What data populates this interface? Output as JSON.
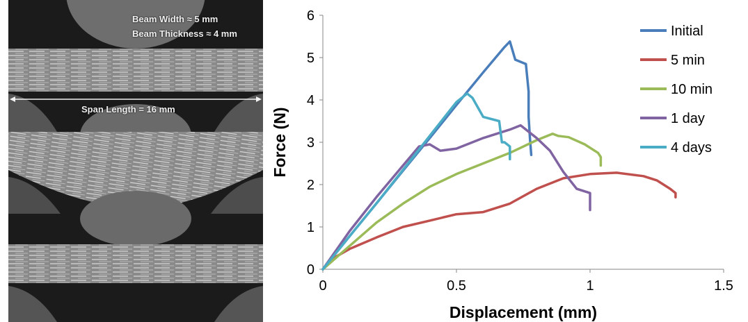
{
  "photo": {
    "captions": {
      "beam_width": "Beam Width ≈ 5 mm",
      "beam_thickness": "Beam Thickness ≈ 4 mm",
      "span_length": "Span Length = 16 mm"
    }
  },
  "chart_data": {
    "type": "line",
    "title": "",
    "xlabel": "Displacement (mm)",
    "ylabel": "Force (N)",
    "xlim": [
      0,
      1.5
    ],
    "ylim": [
      0,
      6
    ],
    "xticks": [
      0,
      0.5,
      1,
      1.5
    ],
    "xtick_labels": [
      "0",
      "0.5",
      "1",
      "1.5"
    ],
    "yticks": [
      0,
      1,
      2,
      3,
      4,
      5,
      6
    ],
    "ytick_labels": [
      "0",
      "1",
      "2",
      "3",
      "4",
      "5",
      "6"
    ],
    "grid": false,
    "legend_position": "top-right",
    "series": [
      {
        "name": "Initial",
        "color": "#4a7ebb",
        "x": [
          0,
          0.1,
          0.2,
          0.3,
          0.4,
          0.5,
          0.6,
          0.68,
          0.7,
          0.72,
          0.76,
          0.77,
          0.77,
          0.775,
          0.78
        ],
        "y": [
          0,
          0.78,
          1.55,
          2.33,
          3.1,
          3.88,
          4.65,
          5.25,
          5.38,
          4.95,
          4.85,
          4.2,
          3.6,
          3.1,
          2.7
        ]
      },
      {
        "name": "5 min",
        "color": "#c0504d",
        "x": [
          0,
          0.05,
          0.1,
          0.2,
          0.3,
          0.4,
          0.5,
          0.6,
          0.7,
          0.8,
          0.9,
          1.0,
          1.1,
          1.2,
          1.25,
          1.3,
          1.32,
          1.32
        ],
        "y": [
          0,
          0.3,
          0.48,
          0.75,
          1.0,
          1.15,
          1.3,
          1.35,
          1.55,
          1.9,
          2.15,
          2.25,
          2.28,
          2.2,
          2.1,
          1.9,
          1.8,
          1.7
        ]
      },
      {
        "name": "10 min",
        "color": "#9bbb59",
        "x": [
          0,
          0.1,
          0.2,
          0.3,
          0.4,
          0.5,
          0.6,
          0.7,
          0.8,
          0.86,
          0.88,
          0.92,
          0.98,
          1.03,
          1.04,
          1.04
        ],
        "y": [
          0,
          0.55,
          1.1,
          1.55,
          1.95,
          2.25,
          2.5,
          2.75,
          3.05,
          3.2,
          3.15,
          3.12,
          2.95,
          2.75,
          2.65,
          2.45
        ]
      },
      {
        "name": "1 day",
        "color": "#8064a2",
        "x": [
          0,
          0.1,
          0.2,
          0.3,
          0.36,
          0.4,
          0.44,
          0.5,
          0.6,
          0.7,
          0.74,
          0.8,
          0.85,
          0.9,
          0.95,
          1.0,
          1.0
        ],
        "y": [
          0,
          0.9,
          1.7,
          2.45,
          2.9,
          2.95,
          2.8,
          2.85,
          3.1,
          3.3,
          3.4,
          3.1,
          2.8,
          2.3,
          1.9,
          1.8,
          1.4
        ]
      },
      {
        "name": "4 days",
        "color": "#4bacc6",
        "x": [
          0,
          0.1,
          0.2,
          0.3,
          0.4,
          0.5,
          0.54,
          0.56,
          0.6,
          0.66,
          0.67,
          0.68,
          0.7,
          0.7
        ],
        "y": [
          0,
          0.78,
          1.55,
          2.35,
          3.15,
          3.95,
          4.15,
          4.05,
          3.6,
          3.5,
          3.0,
          3.0,
          2.9,
          2.6
        ]
      }
    ]
  }
}
